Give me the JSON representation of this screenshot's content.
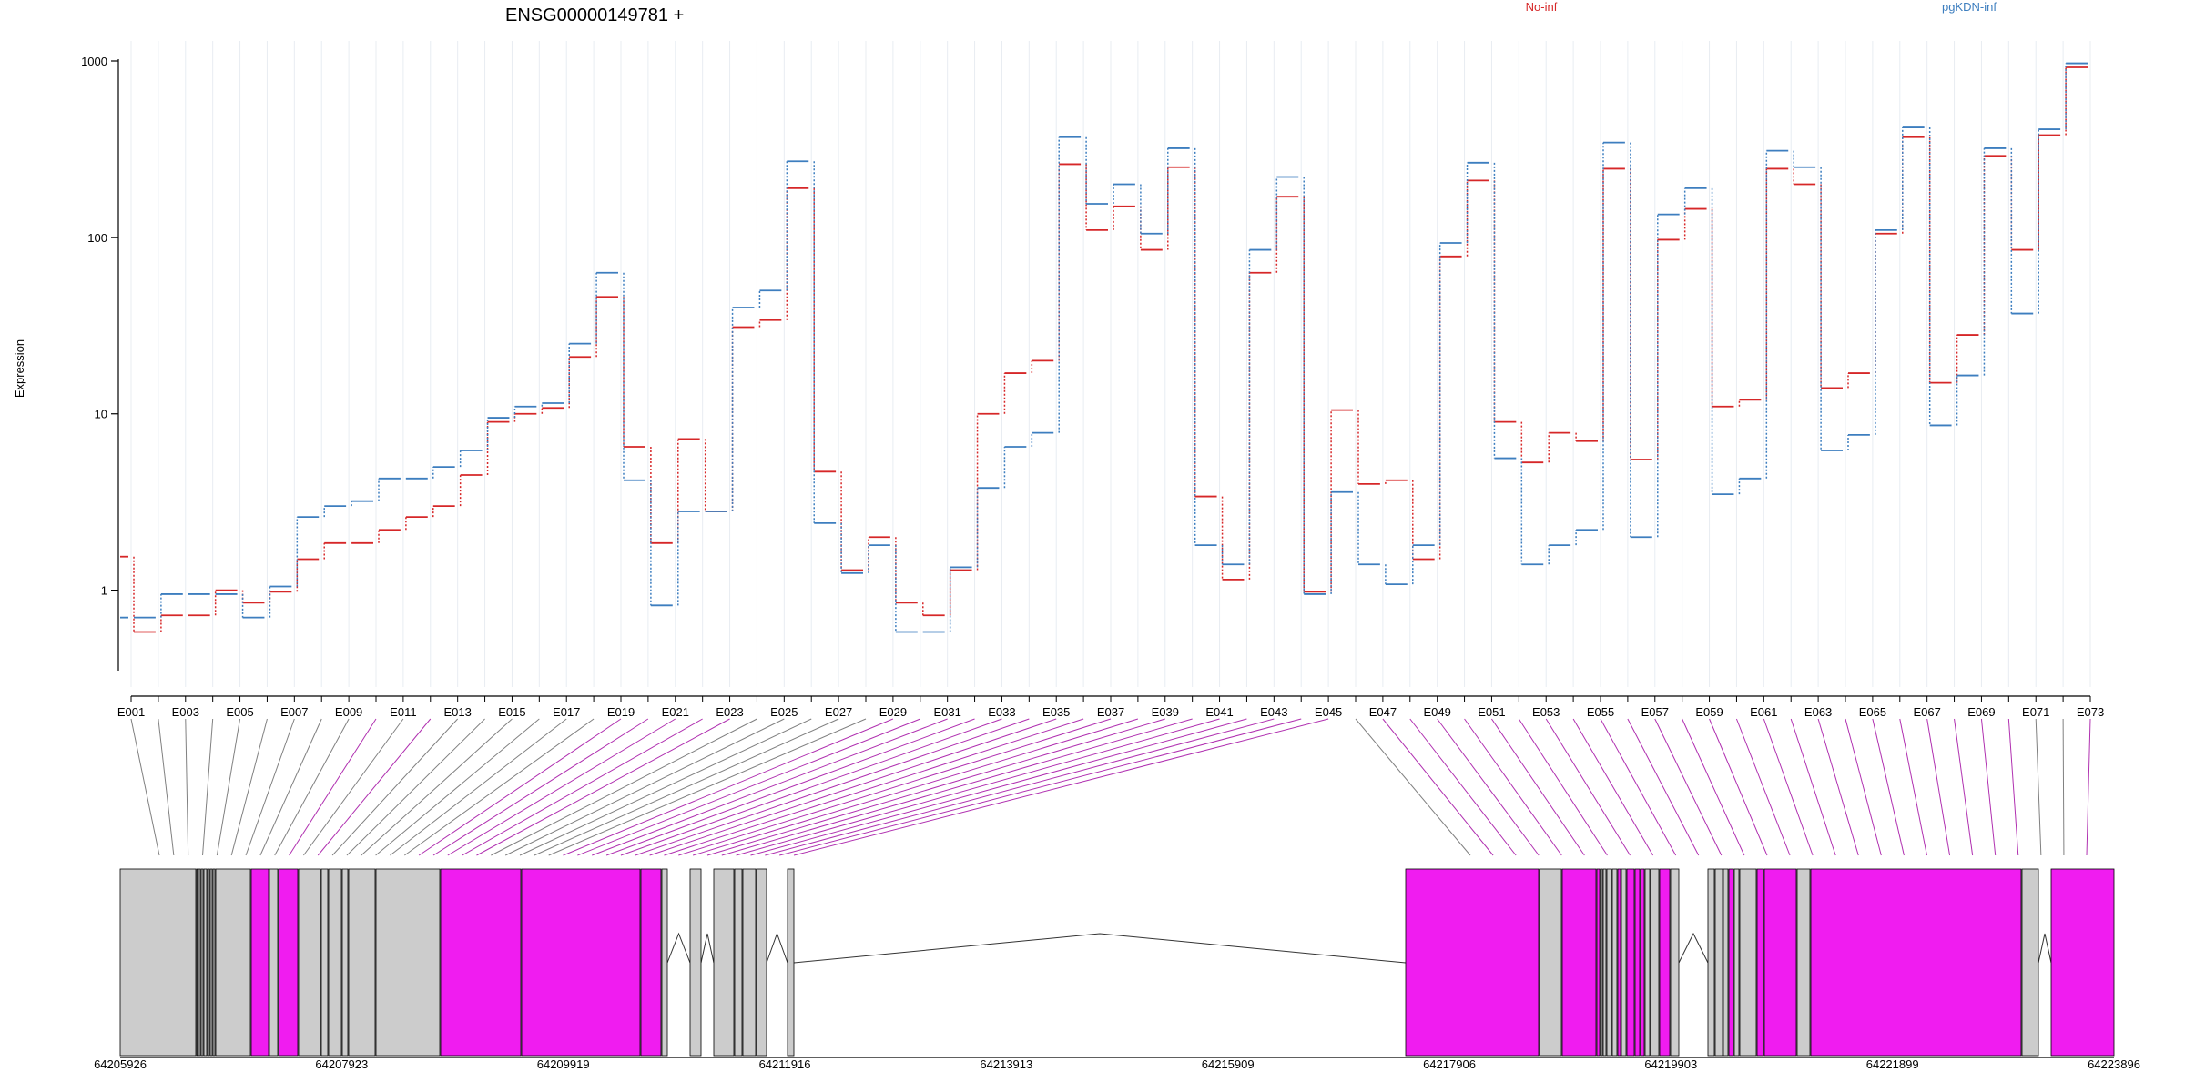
{
  "chart_data": {
    "type": "line",
    "title": "ENSG00000149781 +",
    "ylabel": "Expression",
    "yscale": "log",
    "ylim": [
      0.35,
      1000
    ],
    "yticks": [
      "1",
      "10",
      "100",
      "1000"
    ],
    "grid": "vertical",
    "legend_position": "top-right",
    "x": [
      "E001",
      "E002",
      "E003",
      "E004",
      "E005",
      "E006",
      "E007",
      "E008",
      "E009",
      "E010",
      "E011",
      "E012",
      "E013",
      "E014",
      "E015",
      "E016",
      "E017",
      "E018",
      "E019",
      "E020",
      "E021",
      "E022",
      "E023",
      "E024",
      "E025",
      "E026",
      "E027",
      "E028",
      "E029",
      "E030",
      "E031",
      "E032",
      "E033",
      "E034",
      "E035",
      "E036",
      "E037",
      "E038",
      "E039",
      "E040",
      "E041",
      "E042",
      "E043",
      "E044",
      "E045",
      "E046",
      "E047",
      "E048",
      "E049",
      "E050",
      "E051",
      "E052",
      "E053",
      "E054",
      "E055",
      "E056",
      "E057",
      "E058",
      "E059",
      "E060",
      "E061",
      "E062",
      "E063",
      "E064",
      "E065",
      "E066",
      "E067",
      "E068",
      "E069",
      "E070",
      "E071",
      "E072",
      "E073"
    ],
    "xtick_labels": [
      "E001",
      "E003",
      "E005",
      "E007",
      "E009",
      "E011",
      "E013",
      "E015",
      "E017",
      "E019",
      "E021",
      "E023",
      "E025",
      "E027",
      "E029",
      "E031",
      "E033",
      "E035",
      "E037",
      "E039",
      "E041",
      "E043",
      "E045",
      "E047",
      "E049",
      "E051",
      "E053",
      "E055",
      "E057",
      "E059",
      "E061",
      "E063",
      "E065",
      "E067",
      "E069",
      "E071",
      "E073"
    ],
    "series": [
      {
        "name": "No-inf",
        "color": "#d62728",
        "values": [
          1.55,
          0.58,
          0.72,
          0.72,
          1.0,
          0.85,
          0.98,
          1.5,
          1.85,
          1.85,
          2.2,
          2.6,
          3.0,
          4.5,
          9.0,
          10.0,
          10.8,
          21.0,
          46.0,
          6.5,
          1.85,
          7.2,
          2.8,
          31.0,
          34.0,
          190.0,
          4.7,
          1.3,
          2.0,
          0.85,
          0.72,
          1.3,
          10.0,
          17.0,
          20.0,
          260.0,
          110.0,
          150.0,
          85.0,
          250.0,
          3.4,
          1.15,
          63.0,
          170.0,
          0.98,
          10.5,
          4.0,
          4.2,
          1.5,
          78.0,
          210.0,
          9.0,
          5.3,
          7.8,
          7.0,
          245.0,
          5.5,
          97.0,
          145.0,
          11.0,
          12.0,
          245.0,
          200.0,
          14.0,
          17.0,
          105.0,
          370.0,
          15.0,
          28.0,
          290.0,
          85.0,
          380.0,
          920.0
        ]
      },
      {
        "name": "pgKDN-inf",
        "color": "#3d7ebf",
        "values": [
          0.7,
          0.7,
          0.95,
          0.95,
          0.95,
          0.7,
          1.05,
          2.6,
          3.0,
          3.2,
          4.3,
          4.3,
          5.0,
          6.2,
          9.5,
          11.0,
          11.5,
          25.0,
          63.0,
          4.2,
          0.82,
          2.8,
          2.8,
          40.0,
          50.0,
          270.0,
          2.4,
          1.25,
          1.8,
          0.58,
          0.58,
          1.35,
          3.8,
          6.5,
          7.8,
          370.0,
          155.0,
          200.0,
          105.0,
          320.0,
          1.8,
          1.4,
          85.0,
          220.0,
          0.95,
          3.6,
          1.4,
          1.08,
          1.8,
          93.0,
          265.0,
          5.6,
          1.4,
          1.8,
          2.2,
          345.0,
          2.0,
          135.0,
          190.0,
          3.5,
          4.3,
          310.0,
          250.0,
          6.2,
          7.6,
          110.0,
          420.0,
          8.6,
          16.5,
          320.0,
          37.0,
          410.0,
          970.0
        ]
      }
    ]
  },
  "gene_model": {
    "coordinates": [
      "64205926",
      "64207923",
      "64209919",
      "64211916",
      "64213913",
      "64215909",
      "64217906",
      "64219903",
      "64221899",
      "64223896"
    ],
    "exon_colors": {
      "constitutive": "#cccccc",
      "differential": "#f01cf0",
      "outline": "#000000"
    },
    "connector_colors": {
      "constitutive": "#808080",
      "differential": "#b030b0"
    }
  }
}
